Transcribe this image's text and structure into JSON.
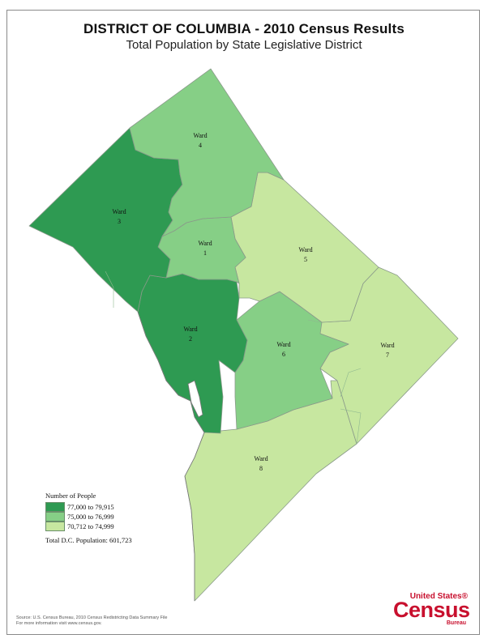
{
  "title": "DISTRICT OF COLUMBIA - 2010 Census Results",
  "subtitle": "Total Population by State Legislative District",
  "colors": {
    "high": "#2e9a52",
    "mid": "#86cf86",
    "low": "#c7e7a0",
    "boundary": "#8a9a8a"
  },
  "wards": [
    {
      "name": "Ward",
      "number": "1",
      "class": "mid"
    },
    {
      "name": "Ward",
      "number": "2",
      "class": "high"
    },
    {
      "name": "Ward",
      "number": "3",
      "class": "high"
    },
    {
      "name": "Ward",
      "number": "4",
      "class": "mid"
    },
    {
      "name": "Ward",
      "number": "5",
      "class": "low"
    },
    {
      "name": "Ward",
      "number": "6",
      "class": "mid"
    },
    {
      "name": "Ward",
      "number": "7",
      "class": "low"
    },
    {
      "name": "Ward",
      "number": "8",
      "class": "low"
    }
  ],
  "legend": {
    "title": "Number of People",
    "items": [
      {
        "label": "77,000 to 79,915",
        "color": "#2e9a52"
      },
      {
        "label": "75,000 to 76,999",
        "color": "#86cf86"
      },
      {
        "label": "70,712 to 74,999",
        "color": "#c7e7a0"
      }
    ],
    "total": "Total D.C. Population:  601,723"
  },
  "source": {
    "line1": "Source:  U.S. Census Bureau, 2010 Census Redistricting Data Summary File",
    "line2": "For more information visit www.census.gov."
  },
  "logo": {
    "top": "United States®",
    "main": "Census",
    "bottom": "Bureau"
  }
}
